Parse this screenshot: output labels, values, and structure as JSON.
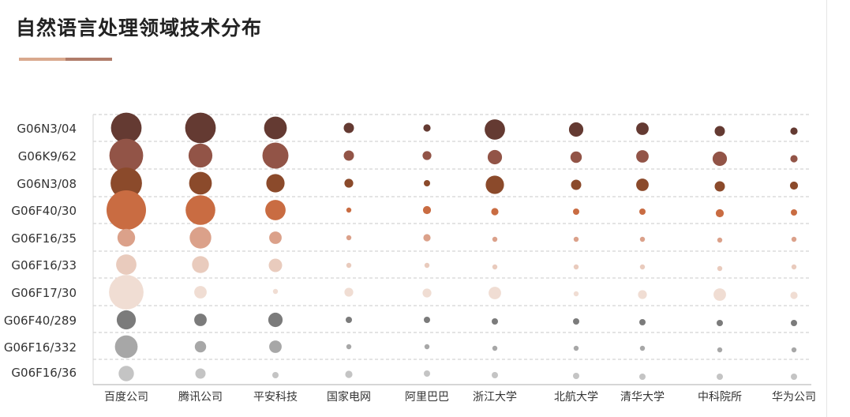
{
  "title": "自然语言处理领域技术分布",
  "chart_data": {
    "type": "scatter",
    "categories_x": [
      "百度公司",
      "腾讯公司",
      "平安科技",
      "国家电网",
      "阿里巴巴",
      "浙江大学",
      "北航大学",
      "清华大学",
      "中科院所",
      "华为公司"
    ],
    "categories_y": [
      "G06N3/04",
      "G06K9/62",
      "G06N3/08",
      "G06F40/30",
      "G06F16/35",
      "G06F16/33",
      "G06F17/30",
      "G06F40/289",
      "G06F16/332",
      "G06F16/36"
    ],
    "row_colors": [
      "#643a32",
      "#925447",
      "#8b4a2b",
      "#c96c42",
      "#dba18a",
      "#e9cbbd",
      "#f0ddd3",
      "#7b7b7b",
      "#a7a7a7",
      "#c4c4c4"
    ],
    "grid": true,
    "legend": "none",
    "values": [
      [
        36,
        36,
        20,
        4,
        2,
        16,
        8,
        6,
        4,
        2
      ],
      [
        44,
        22,
        26,
        4,
        3,
        8,
        5,
        6,
        8,
        2
      ],
      [
        38,
        20,
        13,
        3,
        1.5,
        13,
        4,
        6,
        4,
        2.5
      ],
      [
        60,
        34,
        16,
        1,
        2.5,
        2,
        1.5,
        1.5,
        2.5,
        1.5
      ],
      [
        12,
        18,
        6,
        1,
        2,
        1,
        1,
        1,
        1,
        1
      ],
      [
        16,
        11,
        7,
        1,
        1,
        1,
        1,
        1,
        1,
        1
      ],
      [
        46,
        6,
        1,
        3,
        3,
        6,
        1,
        3,
        6,
        2
      ],
      [
        14,
        6,
        8,
        1.5,
        1.5,
        1.5,
        1.5,
        1.5,
        1.5,
        1.5
      ],
      [
        20,
        5,
        6,
        1,
        1,
        1,
        1,
        1,
        1,
        1
      ],
      [
        9,
        4,
        1.5,
        2,
        1.5,
        1.5,
        1.5,
        1.5,
        1.5,
        1.5
      ]
    ]
  }
}
